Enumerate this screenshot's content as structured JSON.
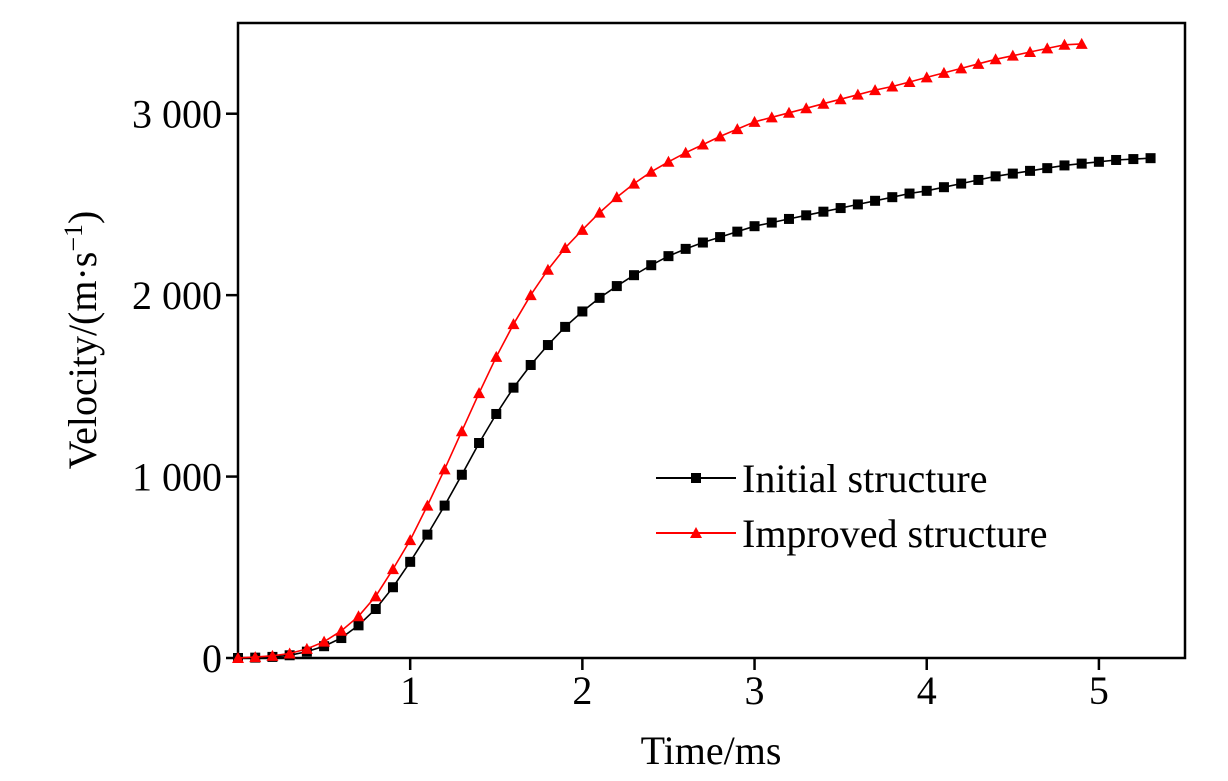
{
  "chart_data": {
    "type": "line",
    "title": "",
    "xlabel": "Time/ms",
    "ylabel_main": "Velocity/(m·s",
    "ylabel_sup": "−1",
    "ylabel_close": ")",
    "xlim": [
      0,
      5.5
    ],
    "ylim": [
      0,
      3500
    ],
    "xticks": [
      1,
      2,
      3,
      4,
      5
    ],
    "xtick_labels": [
      "1",
      "2",
      "3",
      "4",
      "5"
    ],
    "yticks": [
      0,
      1000,
      2000,
      3000
    ],
    "ytick_labels": [
      "0",
      "1 000",
      "2 000",
      "3 000"
    ],
    "grid": false,
    "legend_position": "center-right",
    "series": [
      {
        "name": "Initial structure",
        "color": "#000000",
        "marker": "square",
        "x": [
          0.0,
          0.1,
          0.2,
          0.3,
          0.4,
          0.5,
          0.6,
          0.7,
          0.8,
          0.9,
          1.0,
          1.1,
          1.2,
          1.3,
          1.4,
          1.5,
          1.6,
          1.7,
          1.8,
          1.9,
          2.0,
          2.1,
          2.2,
          2.3,
          2.4,
          2.5,
          2.6,
          2.7,
          2.8,
          2.9,
          3.0,
          3.1,
          3.2,
          3.3,
          3.4,
          3.5,
          3.6,
          3.7,
          3.8,
          3.9,
          4.0,
          4.1,
          4.2,
          4.3,
          4.4,
          4.5,
          4.6,
          4.7,
          4.8,
          4.9,
          5.0,
          5.1,
          5.2,
          5.3
        ],
        "values": [
          0,
          2,
          6,
          15,
          35,
          65,
          110,
          180,
          270,
          390,
          530,
          680,
          840,
          1010,
          1185,
          1345,
          1490,
          1615,
          1725,
          1825,
          1910,
          1985,
          2050,
          2110,
          2165,
          2215,
          2255,
          2290,
          2320,
          2350,
          2380,
          2400,
          2420,
          2440,
          2460,
          2480,
          2500,
          2520,
          2540,
          2560,
          2575,
          2595,
          2615,
          2635,
          2655,
          2670,
          2685,
          2700,
          2715,
          2725,
          2735,
          2745,
          2750,
          2755
        ]
      },
      {
        "name": "Improved structure",
        "color": "#ff0000",
        "marker": "triangle",
        "x": [
          0.0,
          0.1,
          0.2,
          0.3,
          0.4,
          0.5,
          0.6,
          0.7,
          0.8,
          0.9,
          1.0,
          1.1,
          1.2,
          1.3,
          1.4,
          1.5,
          1.6,
          1.7,
          1.8,
          1.9,
          2.0,
          2.1,
          2.2,
          2.3,
          2.4,
          2.5,
          2.6,
          2.7,
          2.8,
          2.9,
          3.0,
          3.1,
          3.2,
          3.3,
          3.4,
          3.5,
          3.6,
          3.7,
          3.8,
          3.9,
          4.0,
          4.1,
          4.2,
          4.3,
          4.4,
          4.5,
          4.6,
          4.7,
          4.8,
          4.9
        ],
        "values": [
          0,
          5,
          12,
          25,
          50,
          90,
          150,
          230,
          340,
          490,
          650,
          840,
          1040,
          1250,
          1460,
          1660,
          1840,
          2000,
          2140,
          2260,
          2360,
          2455,
          2540,
          2615,
          2680,
          2735,
          2785,
          2830,
          2875,
          2915,
          2955,
          2980,
          3005,
          3030,
          3055,
          3080,
          3105,
          3130,
          3150,
          3175,
          3200,
          3225,
          3250,
          3275,
          3300,
          3320,
          3340,
          3360,
          3380,
          3385
        ]
      }
    ]
  }
}
